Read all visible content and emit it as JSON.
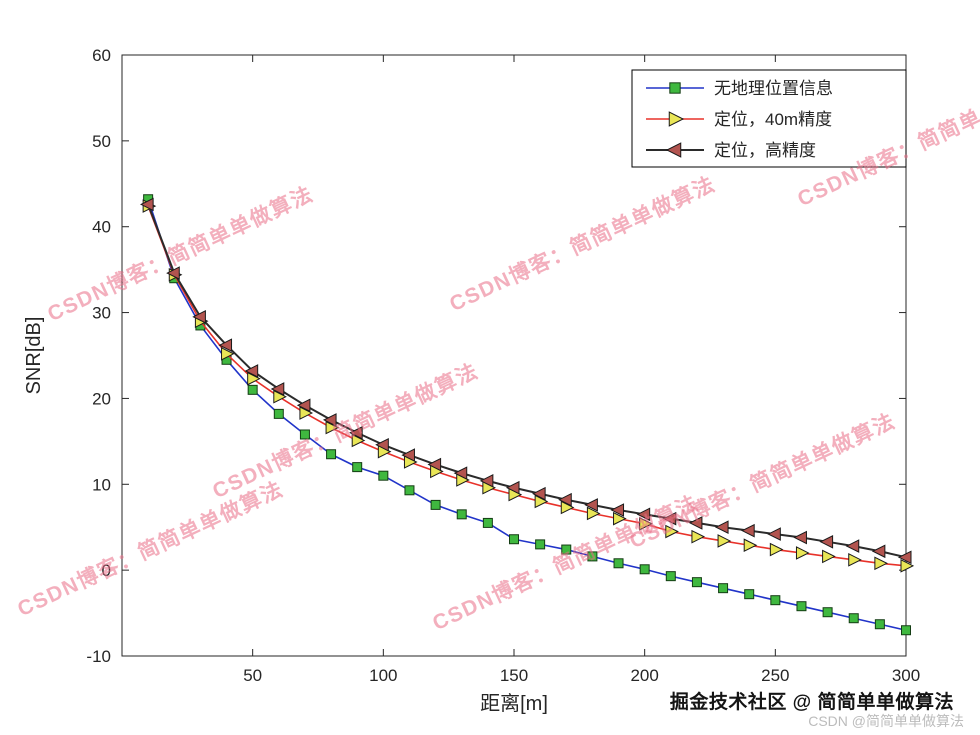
{
  "watermark": {
    "text": "CSDN博客：简简单单做算法",
    "color": "#e96e86"
  },
  "footer": {
    "juejin": "掘金技术社区 @ 简简单单做算法",
    "csdn": "CSDN @简简单单做算法"
  },
  "chart_data": {
    "type": "line",
    "title": "",
    "xlabel": "距离[m]",
    "ylabel": "SNR[dB]",
    "xlim": [
      0,
      300
    ],
    "ylim": [
      -10,
      60
    ],
    "xticks": [
      50,
      100,
      150,
      200,
      250,
      300
    ],
    "yticks": [
      -10,
      0,
      10,
      20,
      30,
      40,
      50,
      60
    ],
    "grid": false,
    "legend_position": "top-right",
    "x": [
      10,
      20,
      30,
      40,
      50,
      60,
      70,
      80,
      90,
      100,
      110,
      120,
      130,
      140,
      150,
      160,
      170,
      180,
      190,
      200,
      210,
      220,
      230,
      240,
      250,
      260,
      270,
      280,
      290,
      300
    ],
    "series": [
      {
        "name": "无地理位置信息",
        "line_color": "#2134c9",
        "line_width": 1.6,
        "marker": "square",
        "marker_color": "#3fb83f",
        "marker_edge": "#143d14",
        "values": [
          43.2,
          34.0,
          28.5,
          24.5,
          21.0,
          18.2,
          15.8,
          13.5,
          12.0,
          11.0,
          9.3,
          7.6,
          6.5,
          5.5,
          3.6,
          3.0,
          2.4,
          1.6,
          0.8,
          0.1,
          -0.7,
          -1.4,
          -2.1,
          -2.8,
          -3.5,
          -4.2,
          -4.9,
          -5.6,
          -6.3,
          -7.0
        ]
      },
      {
        "name": "定位，40m精度",
        "line_color": "#e8322a",
        "line_width": 1.6,
        "marker": "triangle-right",
        "marker_color": "#e9e657",
        "marker_edge": "#1a1a1a",
        "values": [
          42.4,
          34.4,
          29.0,
          25.2,
          22.3,
          20.2,
          18.3,
          16.6,
          15.1,
          13.8,
          12.6,
          11.5,
          10.5,
          9.6,
          8.8,
          8.0,
          7.3,
          6.6,
          6.0,
          5.4,
          4.5,
          3.9,
          3.4,
          2.9,
          2.4,
          2.0,
          1.6,
          1.2,
          0.8,
          0.5
        ]
      },
      {
        "name": "定位，高精度",
        "line_color": "#2b2b2b",
        "line_width": 2,
        "marker": "triangle-left",
        "marker_color": "#b2544f",
        "marker_edge": "#1a1a1a",
        "values": [
          42.6,
          34.6,
          29.5,
          26.2,
          23.2,
          21.1,
          19.2,
          17.5,
          16.0,
          14.6,
          13.4,
          12.3,
          11.3,
          10.4,
          9.6,
          8.9,
          8.2,
          7.6,
          7.0,
          6.5,
          6.0,
          5.5,
          5.0,
          4.6,
          4.2,
          3.8,
          3.3,
          2.8,
          2.2,
          1.5
        ]
      }
    ]
  }
}
